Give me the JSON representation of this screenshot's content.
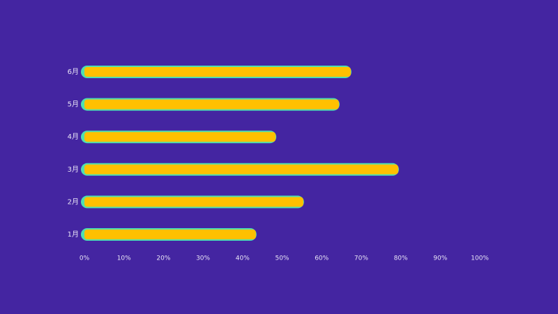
{
  "chart_data": {
    "type": "bar",
    "orientation": "horizontal",
    "categories": [
      "1月",
      "2月",
      "3月",
      "4月",
      "5月",
      "6月"
    ],
    "values": [
      43,
      55,
      79,
      48,
      64,
      67
    ],
    "color": "#ffc000",
    "outline_color": "#4fe0b0",
    "xlim": [
      0,
      100
    ],
    "xticks": [
      {
        "value": 0,
        "label": "0%"
      },
      {
        "value": 10,
        "label": "10%"
      },
      {
        "value": 20,
        "label": "20%"
      },
      {
        "value": 30,
        "label": "30%"
      },
      {
        "value": 40,
        "label": "40%"
      },
      {
        "value": 50,
        "label": "50%"
      },
      {
        "value": 60,
        "label": "60%"
      },
      {
        "value": 70,
        "label": "70%"
      },
      {
        "value": 80,
        "label": "80%"
      },
      {
        "value": 90,
        "label": "90%"
      },
      {
        "value": 100,
        "label": "100%"
      }
    ],
    "grid": false
  }
}
